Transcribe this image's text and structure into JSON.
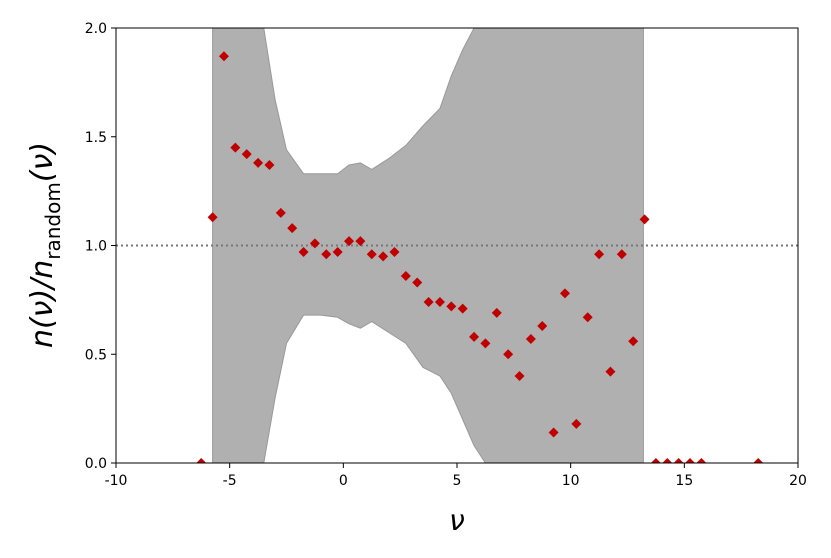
{
  "chart_data": {
    "type": "scatter",
    "xlabel": "ν",
    "ylabel": "n(ν)/n",
    "ylabel_sub": "random",
    "ylabel_end": "(ν)",
    "xlim": [
      -10,
      20
    ],
    "ylim": [
      0,
      2
    ],
    "xticks": [
      -10,
      -5,
      0,
      5,
      10,
      15,
      20
    ],
    "yticks": [
      {
        "value": 0,
        "label": "0.0"
      },
      {
        "value": 0.5,
        "label": "0.5"
      },
      {
        "value": 1,
        "label": "1.0"
      },
      {
        "value": 1.5,
        "label": "1.5"
      },
      {
        "value": 2,
        "label": "2.0"
      }
    ],
    "reference_line": 1,
    "band": {
      "color": "#b0b0b0",
      "x": [
        -5.75,
        -3.5,
        -3,
        -2.5,
        -1.75,
        -1,
        -0.25,
        0.25,
        0.75,
        1.25,
        2,
        2.75,
        3.5,
        4.25,
        4.75,
        5.25,
        5.75,
        6.25,
        13.2
      ],
      "upper": [
        2,
        2,
        1.67,
        1.44,
        1.33,
        1.33,
        1.33,
        1.37,
        1.38,
        1.35,
        1.4,
        1.46,
        1.55,
        1.63,
        1.78,
        1.9,
        2,
        2,
        2
      ],
      "lower": [
        0,
        0,
        0.3,
        0.55,
        0.68,
        0.68,
        0.67,
        0.64,
        0.62,
        0.65,
        0.6,
        0.55,
        0.44,
        0.4,
        0.32,
        0.2,
        0.08,
        0,
        0
      ]
    },
    "series": [
      {
        "color": "#c00000",
        "x": [
          -6.25,
          -5.75,
          -5.25,
          -4.75,
          -4.25,
          -3.75,
          -3.25,
          -2.75,
          -2.25,
          -1.75,
          -1.25,
          -0.75,
          -0.25,
          0.25,
          0.75,
          1.25,
          1.75,
          2.25,
          2.75,
          3.25,
          3.75,
          4.25,
          4.75,
          5.25,
          5.75,
          6.25,
          6.75,
          7.25,
          7.75,
          8.25,
          8.75,
          9.25,
          9.75,
          10.25,
          10.75,
          11.25,
          11.75,
          12.25,
          12.75,
          13.25,
          13.75,
          14.25,
          14.75,
          15.25,
          15.75,
          18.25
        ],
        "values": [
          0,
          1.13,
          1.87,
          1.45,
          1.42,
          1.38,
          1.37,
          1.15,
          1.08,
          0.97,
          1.01,
          0.96,
          0.97,
          1.02,
          1.02,
          0.96,
          0.95,
          0.97,
          0.86,
          0.83,
          0.74,
          0.74,
          0.72,
          0.71,
          0.58,
          0.55,
          0.69,
          0.5,
          0.4,
          0.57,
          0.63,
          0.14,
          0.78,
          0.18,
          0.67,
          0.96,
          0.42,
          0.96,
          0.56,
          1.12,
          0,
          0,
          0,
          0,
          0,
          0
        ]
      }
    ]
  }
}
